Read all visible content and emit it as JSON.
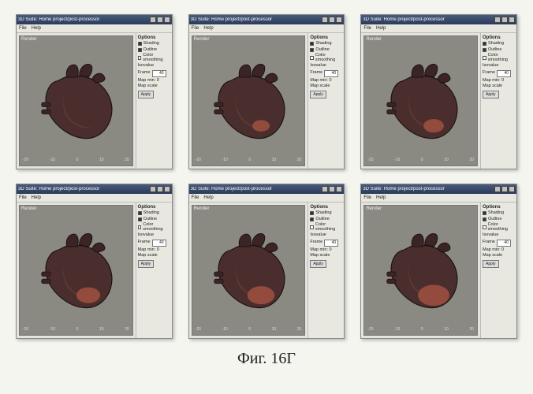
{
  "caption": "Фиг. 16Г",
  "window_title": "3D Suite: Home project/post-processor",
  "titlebar_bg": "#3a4a6a",
  "menus": [
    "File",
    "Help"
  ],
  "view_label": "Render",
  "axis_ticks": [
    "-20",
    "-10",
    "0",
    "10",
    "20"
  ],
  "heart_colors": {
    "body": "#4a2e2e",
    "highlight": "#7a4a3a",
    "vessels": "#3a2424",
    "outline": "#1a1010",
    "spot": "#a05040"
  },
  "side": {
    "title": "Options",
    "chk_shading": "Shading",
    "chk_outline": "Outline",
    "chk_smoothing": "Color smoothing",
    "label_iso": "Isovalue",
    "label_frame": "Frame",
    "label_mapmin": "Map min: 0",
    "label_mapscale": "Map scale",
    "btn_apply": "Apply",
    "num_val": "40"
  },
  "panels": [
    {
      "spot_scale": 0.0
    },
    {
      "spot_scale": 0.15
    },
    {
      "spot_scale": 0.22
    },
    {
      "spot_scale": 0.3
    },
    {
      "spot_scale": 0.38
    },
    {
      "spot_scale": 0.48
    }
  ]
}
